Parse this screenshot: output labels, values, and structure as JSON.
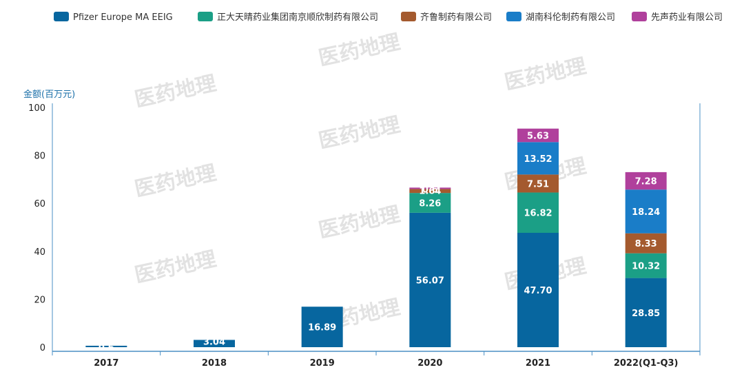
{
  "watermark": "医药地理",
  "chart_data": {
    "type": "bar",
    "stacked": true,
    "categories": [
      "2017",
      "2018",
      "2019",
      "2020",
      "2021",
      "2022(Q1-Q3)"
    ],
    "ylabel": "金额(百万元)",
    "ylim": [
      0,
      100
    ],
    "yticks": [
      0,
      20,
      40,
      60,
      80,
      100
    ],
    "grid": false,
    "legend_position": "top",
    "series": [
      {
        "name": "Pfizer Europe MA EEIG",
        "color": "#07669f",
        "values": [
          0.6,
          3.04,
          16.89,
          56.07,
          47.7,
          28.85
        ],
        "labels": [
          "0.6",
          "3.04",
          "16.89",
          "56.07",
          "47.70",
          "28.85"
        ]
      },
      {
        "name": "正大天晴药业集团南京顺欣制药有限公司",
        "color": "#1b9f86",
        "values": [
          0,
          0,
          0,
          8.26,
          16.82,
          10.32
        ],
        "labels": [
          "",
          "",
          "",
          "8.26",
          "16.82",
          "10.32"
        ]
      },
      {
        "name": "齐鲁制药有限公司",
        "color": "#a45a2e",
        "values": [
          0,
          0,
          0,
          1.64,
          7.51,
          8.33
        ],
        "labels": [
          "",
          "",
          "",
          "1.64",
          "7.51",
          "8.33"
        ]
      },
      {
        "name": "湖南科伦制药有限公司",
        "color": "#1a7dc8",
        "values": [
          0,
          0,
          0,
          0,
          13.52,
          18.24
        ],
        "labels": [
          "",
          "",
          "",
          "",
          "13.52",
          "18.24"
        ]
      },
      {
        "name": "先声药业有限公司",
        "color": "#b0409c",
        "values": [
          0,
          0,
          0,
          0.6,
          5.63,
          7.28
        ],
        "labels": [
          "",
          "",
          "",
          "0.6",
          "5.63",
          "7.28"
        ]
      }
    ]
  }
}
